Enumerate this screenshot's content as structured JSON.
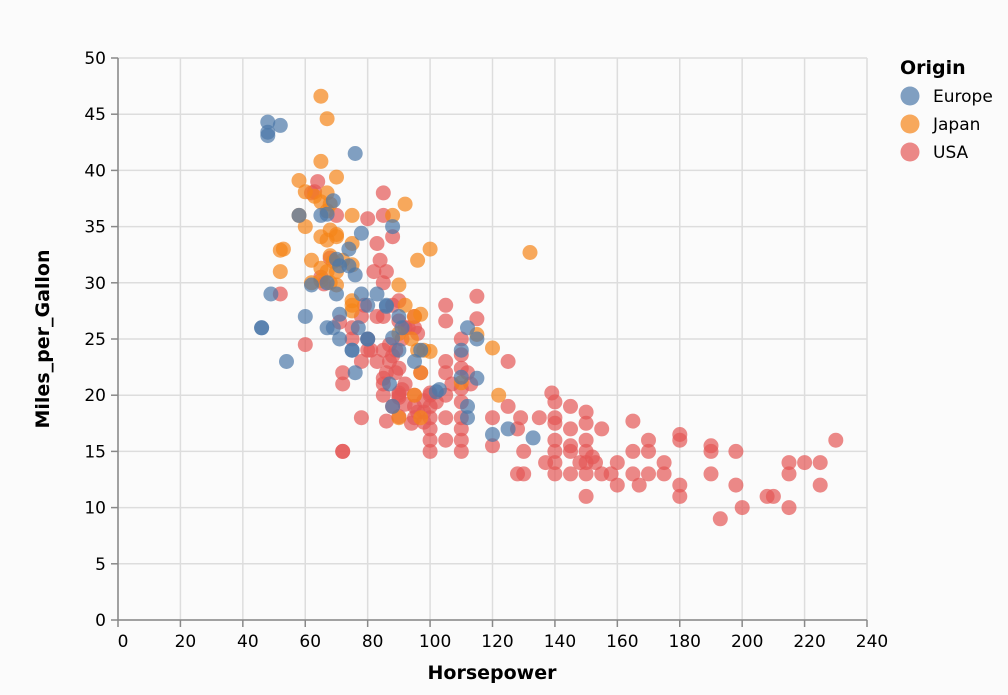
{
  "chart_data": {
    "type": "scatter",
    "xlabel": "Horsepower",
    "ylabel": "Miles_per_Gallon",
    "xlim": [
      0,
      240
    ],
    "ylim": [
      0,
      50
    ],
    "xticks": [
      0,
      20,
      40,
      60,
      80,
      100,
      120,
      140,
      160,
      180,
      200,
      220,
      240
    ],
    "yticks": [
      0,
      5,
      10,
      15,
      20,
      25,
      30,
      35,
      40,
      45,
      50
    ],
    "grid": true,
    "legend": {
      "title": "Origin",
      "placement": "top-right"
    },
    "series": [
      {
        "name": "Europe",
        "color": "#4c78a8",
        "points": [
          [
            48,
            44.3
          ],
          [
            48,
            43.4
          ],
          [
            48,
            43.1
          ],
          [
            52,
            44
          ],
          [
            76,
            41.5
          ],
          [
            46,
            26
          ],
          [
            46,
            26
          ],
          [
            49,
            29
          ],
          [
            54,
            23
          ],
          [
            58,
            36
          ],
          [
            60,
            27
          ],
          [
            62,
            29.8
          ],
          [
            67,
            26
          ],
          [
            67,
            30
          ],
          [
            69,
            26
          ],
          [
            70,
            29
          ],
          [
            71,
            31.5
          ],
          [
            71,
            25
          ],
          [
            71,
            27.2
          ],
          [
            74,
            33
          ],
          [
            75,
            24
          ],
          [
            75,
            24
          ],
          [
            76,
            22
          ],
          [
            76,
            30.7
          ],
          [
            77,
            26
          ],
          [
            78,
            34.4
          ],
          [
            78,
            29
          ],
          [
            80,
            28
          ],
          [
            80,
            25
          ],
          [
            83,
            29
          ],
          [
            86,
            27.9
          ],
          [
            87,
            21
          ],
          [
            88,
            25.1
          ],
          [
            88,
            19
          ],
          [
            88,
            35
          ],
          [
            90,
            24
          ],
          [
            90,
            27
          ],
          [
            95,
            23
          ],
          [
            97,
            24
          ],
          [
            102,
            20.3
          ],
          [
            103,
            20.5
          ],
          [
            110,
            24
          ],
          [
            110,
            21.6
          ],
          [
            112,
            26
          ],
          [
            112,
            18
          ],
          [
            115,
            25
          ],
          [
            115,
            21.5
          ],
          [
            120,
            16.5
          ],
          [
            125,
            17
          ],
          [
            133,
            16.2
          ],
          [
            69,
            37.3
          ],
          [
            65,
            36
          ],
          [
            67,
            36.1
          ],
          [
            70,
            32.1
          ],
          [
            74,
            31.5
          ],
          [
            80,
            25
          ],
          [
            86,
            28
          ],
          [
            91,
            26
          ],
          [
            112,
            19.0
          ]
        ]
      },
      {
        "name": "Japan",
        "color": "#f58518",
        "points": [
          [
            65,
            46.6
          ],
          [
            67,
            44.6
          ],
          [
            65,
            40.8
          ],
          [
            70,
            39.4
          ],
          [
            58,
            39.1
          ],
          [
            60,
            38.1
          ],
          [
            63,
            37.7
          ],
          [
            65,
            37.2
          ],
          [
            67,
            38
          ],
          [
            68,
            37
          ],
          [
            67,
            36.4
          ],
          [
            75,
            36
          ],
          [
            68,
            34.7
          ],
          [
            70,
            34.3
          ],
          [
            62,
            32
          ],
          [
            52,
            32.9
          ],
          [
            53,
            33
          ],
          [
            58,
            36
          ],
          [
            60,
            35
          ],
          [
            65,
            34.1
          ],
          [
            67,
            33.8
          ],
          [
            68,
            32.4
          ],
          [
            69,
            31.9
          ],
          [
            70,
            31
          ],
          [
            72,
            32
          ],
          [
            75,
            33.5
          ],
          [
            75,
            31.6
          ],
          [
            65,
            31.3
          ],
          [
            67,
            31
          ],
          [
            68,
            30
          ],
          [
            70,
            29.8
          ],
          [
            52,
            31
          ],
          [
            62,
            30
          ],
          [
            75,
            28
          ],
          [
            75,
            28.4
          ],
          [
            75,
            27.5
          ],
          [
            88,
            36
          ],
          [
            92,
            37
          ],
          [
            100,
            33
          ],
          [
            96,
            32
          ],
          [
            90,
            29.8
          ],
          [
            95,
            27
          ],
          [
            97,
            27.2
          ],
          [
            92,
            28
          ],
          [
            94,
            25
          ],
          [
            96,
            24
          ],
          [
            97,
            22
          ],
          [
            98,
            24
          ],
          [
            100,
            23.9
          ],
          [
            110,
            21.1
          ],
          [
            115,
            25.4
          ],
          [
            120,
            24.2
          ],
          [
            122,
            20
          ],
          [
            132,
            32.7
          ],
          [
            90,
            18
          ],
          [
            95,
            20
          ],
          [
            97,
            18
          ],
          [
            90,
            25.5
          ],
          [
            65,
            30.2
          ],
          [
            70,
            34.1
          ]
        ]
      },
      {
        "name": "USA",
        "color": "#e45756",
        "points": [
          [
            52,
            29
          ],
          [
            60,
            24.5
          ],
          [
            62,
            38
          ],
          [
            63,
            38.1
          ],
          [
            64,
            39
          ],
          [
            65,
            30.5
          ],
          [
            66,
            29.9
          ],
          [
            68,
            32.2
          ],
          [
            70,
            36
          ],
          [
            71,
            26.5
          ],
          [
            72,
            22
          ],
          [
            72,
            21
          ],
          [
            72,
            15
          ],
          [
            72,
            15
          ],
          [
            75,
            26
          ],
          [
            78,
            18
          ],
          [
            78,
            23
          ],
          [
            79,
            28
          ],
          [
            80,
            25
          ],
          [
            80,
            35.7
          ],
          [
            81,
            24
          ],
          [
            82,
            31
          ],
          [
            83,
            33.5
          ],
          [
            84,
            32
          ],
          [
            85,
            30
          ],
          [
            85,
            27
          ],
          [
            85,
            38
          ],
          [
            85,
            36
          ],
          [
            85,
            24
          ],
          [
            85,
            21
          ],
          [
            85,
            20
          ],
          [
            86,
            31
          ],
          [
            86,
            22
          ],
          [
            86,
            17.7
          ],
          [
            87,
            23
          ],
          [
            88,
            23.5
          ],
          [
            88,
            28
          ],
          [
            88,
            34.1
          ],
          [
            89,
            24
          ],
          [
            90,
            22.4
          ],
          [
            90,
            28.4
          ],
          [
            90,
            26.6
          ],
          [
            90,
            20.2
          ],
          [
            90,
            19.8
          ],
          [
            90,
            18.1
          ],
          [
            91,
            25
          ],
          [
            91,
            20.5
          ],
          [
            92,
            26
          ],
          [
            92,
            19.2
          ],
          [
            95,
            27
          ],
          [
            95,
            26
          ],
          [
            95,
            20
          ],
          [
            95,
            19
          ],
          [
            95,
            18
          ],
          [
            96,
            25.5
          ],
          [
            97,
            22
          ],
          [
            98,
            17.6
          ],
          [
            98,
            18.5
          ],
          [
            100,
            20.2
          ],
          [
            100,
            18
          ],
          [
            100,
            17
          ],
          [
            100,
            16
          ],
          [
            100,
            15
          ],
          [
            100,
            19
          ],
          [
            100,
            20
          ],
          [
            102,
            19.4
          ],
          [
            105,
            28
          ],
          [
            105,
            26.6
          ],
          [
            105,
            23
          ],
          [
            105,
            22
          ],
          [
            105,
            20
          ],
          [
            105,
            18
          ],
          [
            105,
            16
          ],
          [
            107,
            21
          ],
          [
            110,
            25
          ],
          [
            110,
            23.6
          ],
          [
            110,
            22.4
          ],
          [
            110,
            20.6
          ],
          [
            110,
            19.4
          ],
          [
            110,
            18
          ],
          [
            110,
            17
          ],
          [
            110,
            16
          ],
          [
            110,
            15
          ],
          [
            112,
            22
          ],
          [
            113,
            21
          ],
          [
            115,
            28.8
          ],
          [
            115,
            26.8
          ],
          [
            120,
            18
          ],
          [
            120,
            15.5
          ],
          [
            125,
            23
          ],
          [
            125,
            19
          ],
          [
            128,
            17
          ],
          [
            128,
            13
          ],
          [
            129,
            18
          ],
          [
            130,
            13
          ],
          [
            130,
            15
          ],
          [
            135,
            18
          ],
          [
            137,
            14
          ],
          [
            139,
            20.2
          ],
          [
            140,
            19.4
          ],
          [
            140,
            18
          ],
          [
            140,
            17.5
          ],
          [
            140,
            16
          ],
          [
            140,
            15
          ],
          [
            140,
            14
          ],
          [
            140,
            13
          ],
          [
            145,
            19
          ],
          [
            145,
            17
          ],
          [
            145,
            15.5
          ],
          [
            145,
            15
          ],
          [
            145,
            13
          ],
          [
            148,
            14
          ],
          [
            150,
            18.5
          ],
          [
            150,
            17.5
          ],
          [
            150,
            16
          ],
          [
            150,
            15
          ],
          [
            150,
            14
          ],
          [
            150,
            13
          ],
          [
            150,
            11
          ],
          [
            152,
            14.5
          ],
          [
            153,
            14
          ],
          [
            155,
            17
          ],
          [
            155,
            13
          ],
          [
            158,
            13
          ],
          [
            160,
            14
          ],
          [
            160,
            12
          ],
          [
            165,
            17.7
          ],
          [
            165,
            15
          ],
          [
            165,
            13
          ],
          [
            167,
            12
          ],
          [
            170,
            16
          ],
          [
            170,
            15
          ],
          [
            170,
            13
          ],
          [
            175,
            14
          ],
          [
            175,
            13
          ],
          [
            180,
            16.5
          ],
          [
            180,
            16
          ],
          [
            180,
            12
          ],
          [
            180,
            11
          ],
          [
            190,
            15.5
          ],
          [
            190,
            15
          ],
          [
            190,
            13
          ],
          [
            193,
            9
          ],
          [
            198,
            15
          ],
          [
            198,
            12
          ],
          [
            200,
            10
          ],
          [
            208,
            11
          ],
          [
            210,
            11
          ],
          [
            215,
            14
          ],
          [
            215,
            13
          ],
          [
            215,
            10
          ],
          [
            220,
            14
          ],
          [
            225,
            14
          ],
          [
            225,
            12
          ],
          [
            230,
            16
          ],
          [
            88,
            19
          ],
          [
            90,
            20
          ],
          [
            92,
            21
          ],
          [
            94,
            17.5
          ],
          [
            96,
            18.5
          ],
          [
            98,
            19.5
          ],
          [
            93,
            26
          ],
          [
            87,
            24.5
          ],
          [
            89,
            22
          ],
          [
            85,
            21.5
          ],
          [
            83,
            23
          ],
          [
            80,
            24
          ],
          [
            75,
            25
          ],
          [
            78,
            27
          ],
          [
            83,
            27
          ]
        ]
      }
    ]
  }
}
